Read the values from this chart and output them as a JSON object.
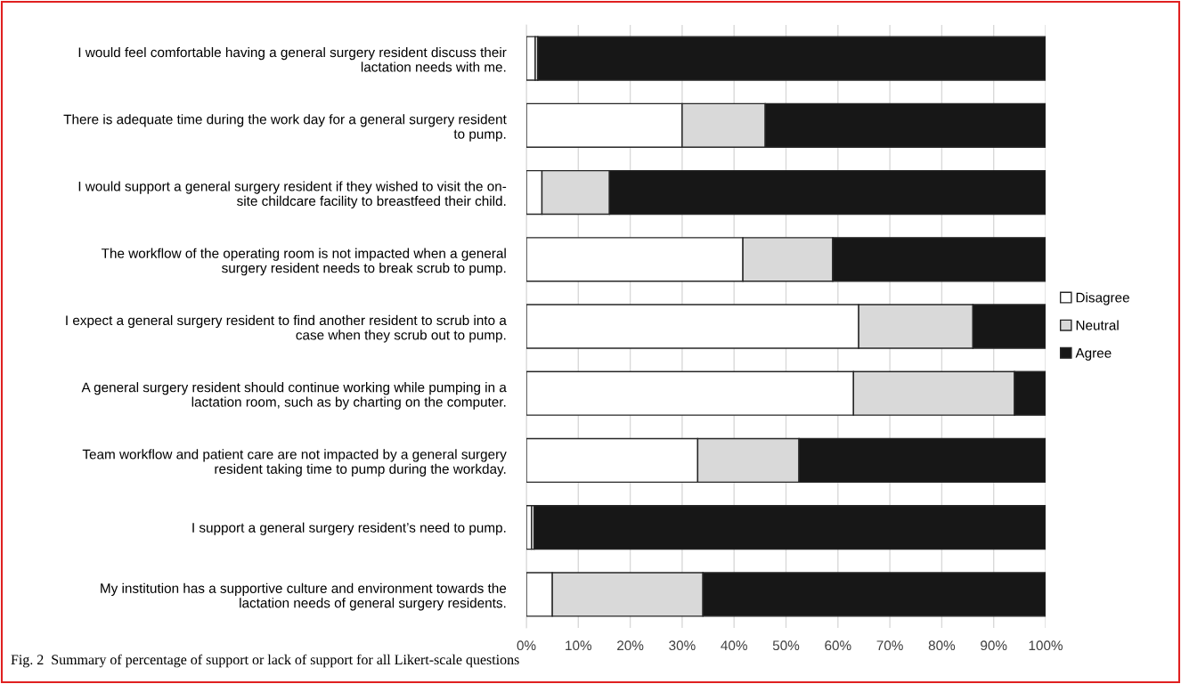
{
  "chart_data": {
    "type": "bar",
    "orientation": "horizontal",
    "stacked": true,
    "categories": [
      "I would feel comfortable having a general surgery resident discuss their\nlactation needs with me.",
      "There is adequate time during the work day for a general surgery resident\nto pump.",
      "I would support a general surgery resident if they wished to visit the on-\nsite childcare facility to breastfeed their child.",
      "The workflow of the operating room is not impacted when a general\nsurgery resident needs to break scrub to pump.",
      "I expect a general surgery resident to find another resident to scrub into a\ncase when they scrub out to pump.",
      "A general surgery resident should continue working while pumping in a\nlactation room, such as by charting on the computer.",
      "Team workflow and patient care are not impacted by a general surgery\nresident taking time to pump during the workday.",
      "I support a general surgery resident’s need to pump.",
      "My institution has a supportive culture and environment towards the\nlactation needs of general surgery residents."
    ],
    "series": [
      {
        "name": "Disagree",
        "color": "#ffffff",
        "values": [
          1.7,
          30,
          3,
          41.7,
          64,
          63,
          33,
          1,
          5
        ]
      },
      {
        "name": "Neutral",
        "color": "#d9d9d9",
        "values": [
          0.5,
          16,
          13,
          17.3,
          22,
          31,
          19.5,
          0.5,
          29
        ]
      },
      {
        "name": "Agree",
        "color": "#171717",
        "values": [
          97.8,
          54,
          84,
          41,
          14,
          6,
          47.5,
          98.5,
          66
        ]
      }
    ],
    "xlim": [
      0,
      100
    ],
    "xticks": [
      {
        "value": 0,
        "label": "0%"
      },
      {
        "value": 10,
        "label": "10%"
      },
      {
        "value": 20,
        "label": "20%"
      },
      {
        "value": 30,
        "label": "30%"
      },
      {
        "value": 40,
        "label": "40%"
      },
      {
        "value": 50,
        "label": "50%"
      },
      {
        "value": 60,
        "label": "60%"
      },
      {
        "value": 70,
        "label": "70%"
      },
      {
        "value": 80,
        "label": "80%"
      },
      {
        "value": 90,
        "label": "90%"
      },
      {
        "value": 100,
        "label": "100%"
      }
    ],
    "grid": "x",
    "legend": "right",
    "annotations": [
      "Fig. 2  Summary of percentage of support or lack of support for all Likert-scale questions"
    ]
  }
}
